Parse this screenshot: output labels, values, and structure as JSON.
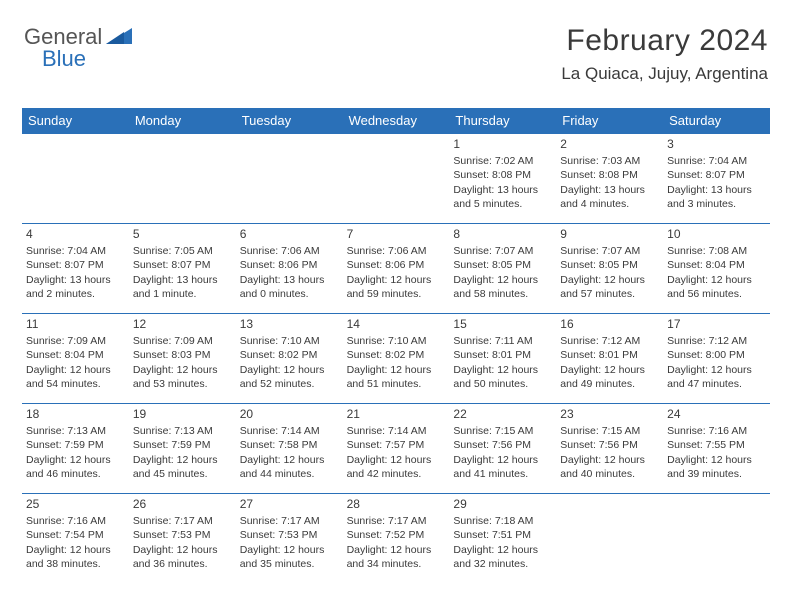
{
  "logo": {
    "part1": "General",
    "part2": "Blue"
  },
  "header": {
    "monthYear": "February 2024",
    "location": "La Quiaca, Jujuy, Argentina"
  },
  "colors": {
    "header_bg": "#2a70b8",
    "text": "#3a3a3a",
    "bg": "#ffffff"
  },
  "dayHeaders": [
    "Sunday",
    "Monday",
    "Tuesday",
    "Wednesday",
    "Thursday",
    "Friday",
    "Saturday"
  ],
  "weeks": [
    [
      null,
      null,
      null,
      null,
      {
        "n": "1",
        "sunrise": "Sunrise: 7:02 AM",
        "sunset": "Sunset: 8:08 PM",
        "daylight": "Daylight: 13 hours and 5 minutes."
      },
      {
        "n": "2",
        "sunrise": "Sunrise: 7:03 AM",
        "sunset": "Sunset: 8:08 PM",
        "daylight": "Daylight: 13 hours and 4 minutes."
      },
      {
        "n": "3",
        "sunrise": "Sunrise: 7:04 AM",
        "sunset": "Sunset: 8:07 PM",
        "daylight": "Daylight: 13 hours and 3 minutes."
      }
    ],
    [
      {
        "n": "4",
        "sunrise": "Sunrise: 7:04 AM",
        "sunset": "Sunset: 8:07 PM",
        "daylight": "Daylight: 13 hours and 2 minutes."
      },
      {
        "n": "5",
        "sunrise": "Sunrise: 7:05 AM",
        "sunset": "Sunset: 8:07 PM",
        "daylight": "Daylight: 13 hours and 1 minute."
      },
      {
        "n": "6",
        "sunrise": "Sunrise: 7:06 AM",
        "sunset": "Sunset: 8:06 PM",
        "daylight": "Daylight: 13 hours and 0 minutes."
      },
      {
        "n": "7",
        "sunrise": "Sunrise: 7:06 AM",
        "sunset": "Sunset: 8:06 PM",
        "daylight": "Daylight: 12 hours and 59 minutes."
      },
      {
        "n": "8",
        "sunrise": "Sunrise: 7:07 AM",
        "sunset": "Sunset: 8:05 PM",
        "daylight": "Daylight: 12 hours and 58 minutes."
      },
      {
        "n": "9",
        "sunrise": "Sunrise: 7:07 AM",
        "sunset": "Sunset: 8:05 PM",
        "daylight": "Daylight: 12 hours and 57 minutes."
      },
      {
        "n": "10",
        "sunrise": "Sunrise: 7:08 AM",
        "sunset": "Sunset: 8:04 PM",
        "daylight": "Daylight: 12 hours and 56 minutes."
      }
    ],
    [
      {
        "n": "11",
        "sunrise": "Sunrise: 7:09 AM",
        "sunset": "Sunset: 8:04 PM",
        "daylight": "Daylight: 12 hours and 54 minutes."
      },
      {
        "n": "12",
        "sunrise": "Sunrise: 7:09 AM",
        "sunset": "Sunset: 8:03 PM",
        "daylight": "Daylight: 12 hours and 53 minutes."
      },
      {
        "n": "13",
        "sunrise": "Sunrise: 7:10 AM",
        "sunset": "Sunset: 8:02 PM",
        "daylight": "Daylight: 12 hours and 52 minutes."
      },
      {
        "n": "14",
        "sunrise": "Sunrise: 7:10 AM",
        "sunset": "Sunset: 8:02 PM",
        "daylight": "Daylight: 12 hours and 51 minutes."
      },
      {
        "n": "15",
        "sunrise": "Sunrise: 7:11 AM",
        "sunset": "Sunset: 8:01 PM",
        "daylight": "Daylight: 12 hours and 50 minutes."
      },
      {
        "n": "16",
        "sunrise": "Sunrise: 7:12 AM",
        "sunset": "Sunset: 8:01 PM",
        "daylight": "Daylight: 12 hours and 49 minutes."
      },
      {
        "n": "17",
        "sunrise": "Sunrise: 7:12 AM",
        "sunset": "Sunset: 8:00 PM",
        "daylight": "Daylight: 12 hours and 47 minutes."
      }
    ],
    [
      {
        "n": "18",
        "sunrise": "Sunrise: 7:13 AM",
        "sunset": "Sunset: 7:59 PM",
        "daylight": "Daylight: 12 hours and 46 minutes."
      },
      {
        "n": "19",
        "sunrise": "Sunrise: 7:13 AM",
        "sunset": "Sunset: 7:59 PM",
        "daylight": "Daylight: 12 hours and 45 minutes."
      },
      {
        "n": "20",
        "sunrise": "Sunrise: 7:14 AM",
        "sunset": "Sunset: 7:58 PM",
        "daylight": "Daylight: 12 hours and 44 minutes."
      },
      {
        "n": "21",
        "sunrise": "Sunrise: 7:14 AM",
        "sunset": "Sunset: 7:57 PM",
        "daylight": "Daylight: 12 hours and 42 minutes."
      },
      {
        "n": "22",
        "sunrise": "Sunrise: 7:15 AM",
        "sunset": "Sunset: 7:56 PM",
        "daylight": "Daylight: 12 hours and 41 minutes."
      },
      {
        "n": "23",
        "sunrise": "Sunrise: 7:15 AM",
        "sunset": "Sunset: 7:56 PM",
        "daylight": "Daylight: 12 hours and 40 minutes."
      },
      {
        "n": "24",
        "sunrise": "Sunrise: 7:16 AM",
        "sunset": "Sunset: 7:55 PM",
        "daylight": "Daylight: 12 hours and 39 minutes."
      }
    ],
    [
      {
        "n": "25",
        "sunrise": "Sunrise: 7:16 AM",
        "sunset": "Sunset: 7:54 PM",
        "daylight": "Daylight: 12 hours and 38 minutes."
      },
      {
        "n": "26",
        "sunrise": "Sunrise: 7:17 AM",
        "sunset": "Sunset: 7:53 PM",
        "daylight": "Daylight: 12 hours and 36 minutes."
      },
      {
        "n": "27",
        "sunrise": "Sunrise: 7:17 AM",
        "sunset": "Sunset: 7:53 PM",
        "daylight": "Daylight: 12 hours and 35 minutes."
      },
      {
        "n": "28",
        "sunrise": "Sunrise: 7:17 AM",
        "sunset": "Sunset: 7:52 PM",
        "daylight": "Daylight: 12 hours and 34 minutes."
      },
      {
        "n": "29",
        "sunrise": "Sunrise: 7:18 AM",
        "sunset": "Sunset: 7:51 PM",
        "daylight": "Daylight: 12 hours and 32 minutes."
      },
      null,
      null
    ]
  ]
}
